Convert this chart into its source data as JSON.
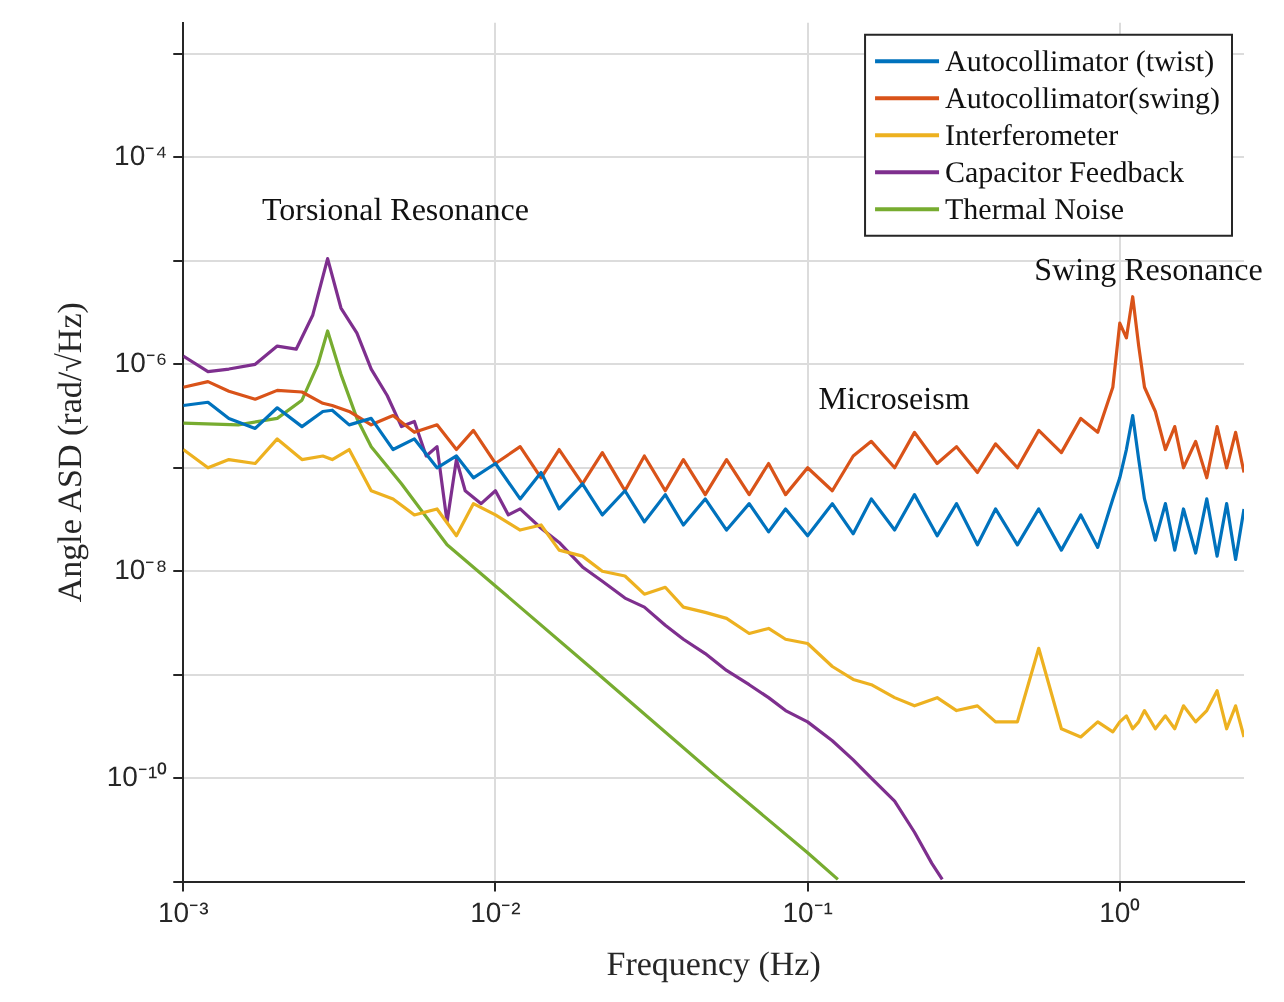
{
  "chart_data": {
    "type": "line",
    "xlabel": "Frequency (Hz)",
    "ylabel": "Angle ASD (rad/√Hz)",
    "log": "xy",
    "grid": true,
    "legend": "top right",
    "marker": "none",
    "line_style": "solid",
    "xlim": [
      0.001,
      2.5
    ],
    "ylim": [
      1e-11,
      0.002
    ],
    "xticks": [
      {
        "value": 0.001,
        "label": "10⁻³"
      },
      {
        "value": 0.01,
        "label": "10⁻²"
      },
      {
        "value": 0.1,
        "label": "10⁻¹"
      },
      {
        "value": 1,
        "label": "10⁰"
      }
    ],
    "yticks": [
      {
        "value": 1e-11,
        "label": null
      },
      {
        "value": 1e-10,
        "label": "10⁻¹⁰"
      },
      {
        "value": 1e-09,
        "label": null
      },
      {
        "value": 1e-08,
        "label": "10⁻⁸"
      },
      {
        "value": 1e-07,
        "label": null
      },
      {
        "value": 1e-06,
        "label": "10⁻⁶"
      },
      {
        "value": 1e-05,
        "label": null
      },
      {
        "value": 0.0001,
        "label": "10⁻⁴"
      },
      {
        "value": 0.001,
        "label": null
      }
    ],
    "annotations": [
      "Torsional Resonance",
      "Microseism",
      "Swing Resonance"
    ],
    "x": [
      0.001,
      0.0012,
      0.0014,
      0.0017,
      0.002,
      0.0024,
      0.0028,
      0.003,
      0.0034,
      0.004,
      0.0047,
      0.0055,
      0.0065,
      0.0075,
      0.0085,
      0.01,
      0.012,
      0.014,
      0.016,
      0.019,
      0.022,
      0.026,
      0.03,
      0.035,
      0.04,
      0.047,
      0.055,
      0.065,
      0.075,
      0.085,
      0.1,
      0.12,
      0.14,
      0.16,
      0.19,
      0.22,
      0.26,
      0.3,
      0.35,
      0.4,
      0.47,
      0.55,
      0.65,
      0.75,
      0.85,
      0.95,
      1.0,
      1.05,
      1.1,
      1.15,
      1.2,
      1.3,
      1.4,
      1.5,
      1.6,
      1.75,
      1.9,
      2.05,
      2.2,
      2.35,
      2.5
    ],
    "series": [
      {
        "name": "Autocollimator (twist)",
        "color": "#0072bd",
        "values": [
          4e-07,
          4.3e-07,
          3e-07,
          2.4e-07,
          3.8e-07,
          2.5e-07,
          3.5e-07,
          3.6e-07,
          2.6e-07,
          3e-07,
          1.5e-07,
          1.9e-07,
          1e-07,
          1.3e-07,
          8e-08,
          1.1e-07,
          5e-08,
          9e-08,
          4e-08,
          7e-08,
          3.5e-08,
          6e-08,
          3e-08,
          5.5e-08,
          2.8e-08,
          5e-08,
          2.5e-08,
          4.5e-08,
          2.4e-08,
          4e-08,
          2.2e-08,
          4.5e-08,
          2.3e-08,
          5e-08,
          2.5e-08,
          5.5e-08,
          2.2e-08,
          4.5e-08,
          1.8e-08,
          4e-08,
          1.8e-08,
          4e-08,
          1.6e-08,
          3.5e-08,
          1.7e-08,
          5e-08,
          8e-08,
          1.5e-07,
          3.2e-07,
          1.2e-07,
          5e-08,
          2e-08,
          4.5e-08,
          1.6e-08,
          4e-08,
          1.5e-08,
          5e-08,
          1.4e-08,
          4.5e-08,
          1.3e-08,
          4e-08
        ]
      },
      {
        "name": "Autocollimator(swing)",
        "color": "#d95319",
        "values": [
          6e-07,
          6.8e-07,
          5.5e-07,
          4.6e-07,
          5.6e-07,
          5.4e-07,
          4.2e-07,
          4e-07,
          3.5e-07,
          2.6e-07,
          3.2e-07,
          2.2e-07,
          2.6e-07,
          1.5e-07,
          2.3e-07,
          1.1e-07,
          1.6e-07,
          8e-08,
          1.5e-07,
          7e-08,
          1.4e-07,
          6e-08,
          1.3e-07,
          6e-08,
          1.2e-07,
          5.5e-08,
          1.2e-07,
          5.5e-08,
          1.1e-07,
          5.5e-08,
          1e-07,
          6e-08,
          1.3e-07,
          1.8e-07,
          1e-07,
          2.2e-07,
          1.1e-07,
          1.6e-07,
          9e-08,
          1.7e-07,
          1e-07,
          2.3e-07,
          1.4e-07,
          3e-07,
          2.2e-07,
          6e-07,
          2.5e-06,
          1.8e-06,
          4.5e-06,
          1.5e-06,
          6e-07,
          3.5e-07,
          1.5e-07,
          2.5e-07,
          1e-07,
          1.8e-07,
          8e-08,
          2.5e-07,
          1e-07,
          2.2e-07,
          9e-08
        ]
      },
      {
        "name": "Interferometer",
        "color": "#edb120",
        "values": [
          1.5e-07,
          1e-07,
          1.2e-07,
          1.1e-07,
          1.9e-07,
          1.2e-07,
          1.3e-07,
          1.2e-07,
          1.5e-07,
          6e-08,
          5e-08,
          3.5e-08,
          4e-08,
          2.2e-08,
          4.5e-08,
          3.5e-08,
          2.5e-08,
          2.8e-08,
          1.6e-08,
          1.4e-08,
          1e-08,
          9e-09,
          6e-09,
          7e-09,
          4.5e-09,
          4e-09,
          3.5e-09,
          2.5e-09,
          2.8e-09,
          2.2e-09,
          2e-09,
          1.2e-09,
          9e-10,
          8e-10,
          6e-10,
          5e-10,
          6e-10,
          4.5e-10,
          5e-10,
          3.5e-10,
          3.5e-10,
          1.8e-09,
          3e-10,
          2.5e-10,
          3.5e-10,
          2.8e-10,
          3.5e-10,
          4e-10,
          3e-10,
          3.5e-10,
          4.5e-10,
          3e-10,
          4e-10,
          3e-10,
          5e-10,
          3.5e-10,
          4.5e-10,
          7e-10,
          3e-10,
          5e-10,
          2.5e-10
        ]
      },
      {
        "name": "Capacitor Feedback",
        "color": "#7e2f8e",
        "x": [
          0.001,
          0.0012,
          0.0014,
          0.0017,
          0.002,
          0.0023,
          0.0026,
          0.0029,
          0.0032,
          0.0036,
          0.004,
          0.0045,
          0.005,
          0.0055,
          0.006,
          0.0065,
          0.007,
          0.0075,
          0.008,
          0.009,
          0.01,
          0.011,
          0.012,
          0.014,
          0.016,
          0.019,
          0.022,
          0.026,
          0.03,
          0.035,
          0.04,
          0.047,
          0.055,
          0.065,
          0.075,
          0.085,
          0.1,
          0.12,
          0.14,
          0.16,
          0.19,
          0.22,
          0.25,
          0.27
        ],
        "values": [
          1.2e-06,
          8.5e-07,
          9e-07,
          1e-06,
          1.5e-06,
          1.4e-06,
          3e-06,
          1.05e-05,
          3.5e-06,
          2e-06,
          9e-07,
          5e-07,
          2.5e-07,
          2.8e-07,
          1.3e-07,
          1.6e-07,
          3e-08,
          1.2e-07,
          6e-08,
          4.5e-08,
          6e-08,
          3.5e-08,
          4e-08,
          2.6e-08,
          1.9e-08,
          1.1e-08,
          8e-09,
          5.5e-09,
          4.5e-09,
          3e-09,
          2.2e-09,
          1.6e-09,
          1.1e-09,
          8e-10,
          6e-10,
          4.5e-10,
          3.5e-10,
          2.3e-10,
          1.5e-10,
          1e-10,
          6e-11,
          3e-11,
          1.5e-11,
          1.05e-11
        ]
      },
      {
        "name": "Thermal Noise",
        "color": "#77ac30",
        "x": [
          0.001,
          0.0015,
          0.002,
          0.0024,
          0.0027,
          0.0029,
          0.0032,
          0.0036,
          0.004,
          0.005,
          0.007,
          0.01,
          0.02,
          0.05,
          0.1,
          0.125
        ],
        "values": [
          2.7e-07,
          2.6e-07,
          3e-07,
          4.5e-07,
          1e-06,
          2.1e-06,
          8e-07,
          3e-07,
          1.6e-07,
          7e-08,
          1.8e-08,
          7.2e-09,
          1.2e-09,
          1.1e-10,
          1.9e-11,
          1.05e-11
        ]
      }
    ]
  }
}
